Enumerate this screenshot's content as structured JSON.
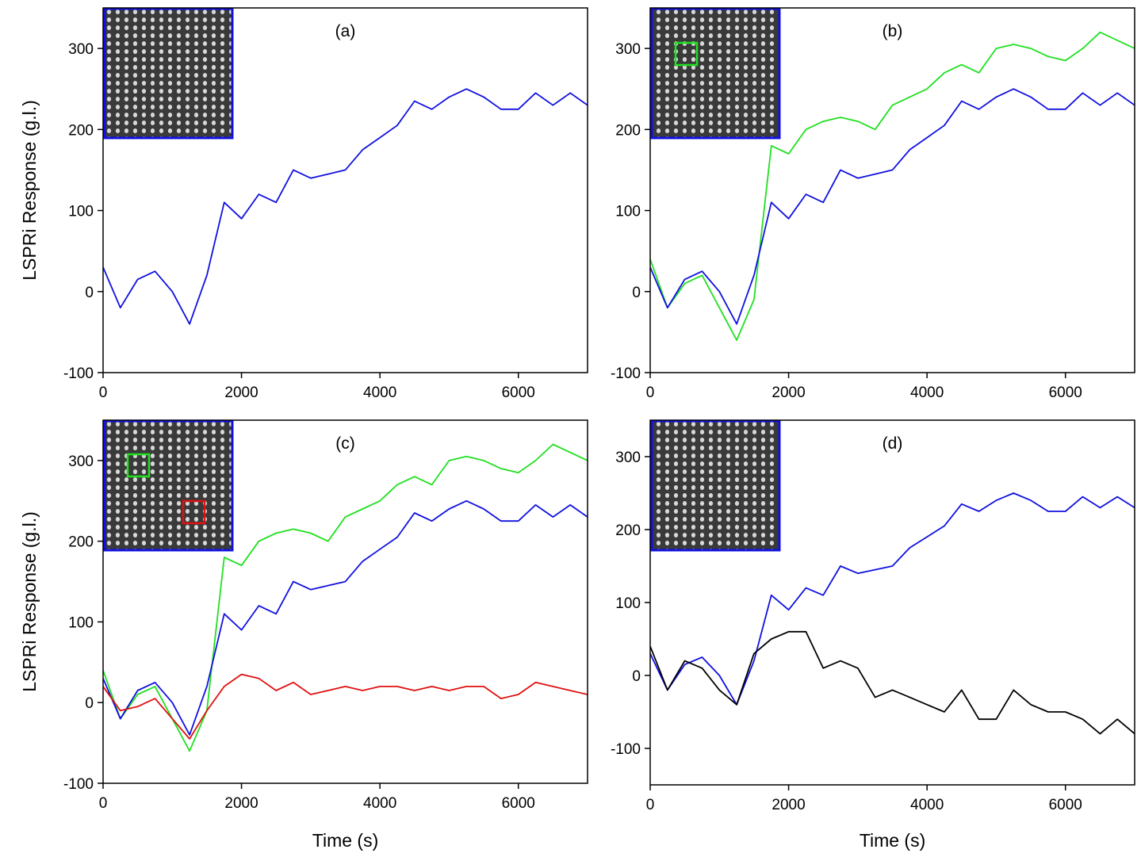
{
  "chart_data": [
    {
      "type": "line",
      "title": "(a)",
      "x_label": null,
      "y_label": "LSPRi Response (g.l.)",
      "x": [
        0,
        250,
        500,
        750,
        1000,
        1250,
        1500,
        1750,
        2000,
        2250,
        2500,
        2750,
        3000,
        3250,
        3500,
        3750,
        4000,
        4250,
        4500,
        4750,
        5000,
        5250,
        5500,
        5750,
        6000,
        6250,
        6500,
        6750,
        7000
      ],
      "xlim": [
        0,
        7000
      ],
      "xticks": [
        0,
        2000,
        4000,
        6000
      ],
      "ylim": [
        -100,
        350
      ],
      "yticks": [
        -100,
        0,
        100,
        200,
        300
      ],
      "series": [
        {
          "name": null,
          "color": "#1010e0",
          "values": [
            30,
            -20,
            15,
            25,
            0,
            -40,
            20,
            110,
            90,
            120,
            110,
            150,
            140,
            145,
            150,
            175,
            190,
            205,
            235,
            225,
            240,
            250,
            240,
            225,
            225,
            245,
            230,
            245,
            230
          ]
        }
      ]
    },
    {
      "type": "line",
      "title": "(b)",
      "x_label": null,
      "y_label": null,
      "x": [
        0,
        250,
        500,
        750,
        1000,
        1250,
        1500,
        1750,
        2000,
        2250,
        2500,
        2750,
        3000,
        3250,
        3500,
        3750,
        4000,
        4250,
        4500,
        4750,
        5000,
        5250,
        5500,
        5750,
        6000,
        6250,
        6500,
        6750,
        7000
      ],
      "xlim": [
        0,
        7000
      ],
      "xticks": [
        0,
        2000,
        4000,
        6000
      ],
      "ylim": [
        -100,
        350
      ],
      "yticks": [
        -100,
        0,
        100,
        200,
        300
      ],
      "series": [
        {
          "name": null,
          "color": "#20e020",
          "values": [
            40,
            -20,
            10,
            20,
            -20,
            -60,
            -10,
            180,
            170,
            200,
            210,
            215,
            210,
            200,
            230,
            240,
            250,
            270,
            280,
            270,
            300,
            305,
            300,
            290,
            285,
            300,
            320,
            310,
            300
          ]
        },
        {
          "name": null,
          "color": "#1010e0",
          "values": [
            30,
            -20,
            15,
            25,
            0,
            -40,
            20,
            110,
            90,
            120,
            110,
            150,
            140,
            145,
            150,
            175,
            190,
            205,
            235,
            225,
            240,
            250,
            240,
            225,
            225,
            245,
            230,
            245,
            230
          ]
        }
      ]
    },
    {
      "type": "line",
      "title": "(c)",
      "x_label": "Time (s)",
      "y_label": "LSPRi Response (g.l.)",
      "x": [
        0,
        250,
        500,
        750,
        1000,
        1250,
        1500,
        1750,
        2000,
        2250,
        2500,
        2750,
        3000,
        3250,
        3500,
        3750,
        4000,
        4250,
        4500,
        4750,
        5000,
        5250,
        5500,
        5750,
        6000,
        6250,
        6500,
        6750,
        7000
      ],
      "xlim": [
        0,
        7000
      ],
      "xticks": [
        0,
        2000,
        4000,
        6000
      ],
      "ylim": [
        -100,
        350
      ],
      "yticks": [
        -100,
        0,
        100,
        200,
        300
      ],
      "series": [
        {
          "name": null,
          "color": "#20e020",
          "values": [
            40,
            -20,
            10,
            20,
            -20,
            -60,
            -10,
            180,
            170,
            200,
            210,
            215,
            210,
            200,
            230,
            240,
            250,
            270,
            280,
            270,
            300,
            305,
            300,
            290,
            285,
            300,
            320,
            310,
            300
          ]
        },
        {
          "name": null,
          "color": "#1010e0",
          "values": [
            30,
            -20,
            15,
            25,
            0,
            -40,
            20,
            110,
            90,
            120,
            110,
            150,
            140,
            145,
            150,
            175,
            190,
            205,
            235,
            225,
            240,
            250,
            240,
            225,
            225,
            245,
            230,
            245,
            230
          ]
        },
        {
          "name": null,
          "color": "#e01010",
          "values": [
            20,
            -10,
            -5,
            5,
            -20,
            -45,
            -10,
            20,
            35,
            30,
            15,
            25,
            10,
            15,
            20,
            15,
            20,
            20,
            15,
            20,
            15,
            20,
            20,
            5,
            10,
            25,
            20,
            15,
            10
          ]
        }
      ]
    },
    {
      "type": "line",
      "title": "(d)",
      "x_label": "Time (s)",
      "y_label": null,
      "x": [
        0,
        250,
        500,
        750,
        1000,
        1250,
        1500,
        1750,
        2000,
        2250,
        2500,
        2750,
        3000,
        3250,
        3500,
        3750,
        4000,
        4250,
        4500,
        4750,
        5000,
        5250,
        5500,
        5750,
        6000,
        6250,
        6500,
        6750,
        7000
      ],
      "xlim": [
        0,
        7000
      ],
      "xticks": [
        0,
        2000,
        4000,
        6000
      ],
      "ylim": [
        -150,
        350
      ],
      "yticks": [
        -100,
        0,
        100,
        200,
        300
      ],
      "series": [
        {
          "name": null,
          "color": "#1010e0",
          "values": [
            30,
            -20,
            15,
            25,
            0,
            -40,
            20,
            110,
            90,
            120,
            110,
            150,
            140,
            145,
            150,
            175,
            190,
            205,
            235,
            225,
            240,
            250,
            240,
            225,
            225,
            245,
            230,
            245,
            230
          ]
        },
        {
          "name": null,
          "color": "#000000",
          "values": [
            40,
            -20,
            20,
            10,
            -20,
            -40,
            30,
            50,
            60,
            60,
            10,
            20,
            10,
            -30,
            -20,
            -30,
            -40,
            -50,
            -20,
            -60,
            -60,
            -20,
            -40,
            -50,
            -50,
            -60,
            -80,
            -60,
            -80
          ]
        }
      ]
    }
  ]
}
